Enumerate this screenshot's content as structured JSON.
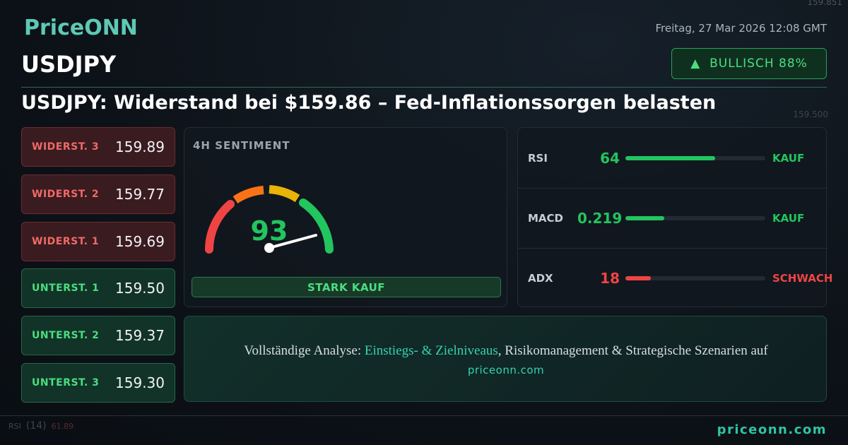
{
  "header": {
    "brand": "PriceONN",
    "date": "Freitag, 27 Mar 2026 12:08 GMT",
    "symbol": "USDJPY",
    "badge": "BULLISCH 88%",
    "headline": "USDJPY: Widerstand bei $159.86 – Fed-Inflationssorgen belasten"
  },
  "levels": [
    {
      "label": "WIDERST. 3",
      "value": "159.89",
      "kind": "resistance"
    },
    {
      "label": "WIDERST. 2",
      "value": "159.77",
      "kind": "resistance"
    },
    {
      "label": "WIDERST. 1",
      "value": "159.69",
      "kind": "resistance"
    },
    {
      "label": "UNTERST. 1",
      "value": "159.50",
      "kind": "support"
    },
    {
      "label": "UNTERST. 2",
      "value": "159.37",
      "kind": "support"
    },
    {
      "label": "UNTERST. 3",
      "value": "159.30",
      "kind": "support"
    }
  ],
  "sentiment": {
    "title": "4H SENTIMENT",
    "value": "93",
    "verdict": "STARK KAUF"
  },
  "indicators": [
    {
      "name": "RSI",
      "value": "64",
      "signal": "KAUF",
      "tone": "green"
    },
    {
      "name": "MACD",
      "value": "0.219",
      "signal": "KAUF",
      "tone": "green"
    },
    {
      "name": "ADX",
      "value": "18",
      "signal": "SCHWACH",
      "tone": "red"
    }
  ],
  "cta": {
    "lead": "Vollständige Analyse: ",
    "highlight": "Einstiegs- & Zielniveaus",
    "rest": ", Risikomanagement & Strategische Szenarien auf",
    "link": "priceonn.com"
  },
  "background": {
    "price_top": "159.851",
    "price_mid": "159.500",
    "rsi_label": "RSI",
    "rsi_period": "(14)",
    "rsi_value": "61.89"
  },
  "footer": {
    "site": "priceonn.com"
  }
}
